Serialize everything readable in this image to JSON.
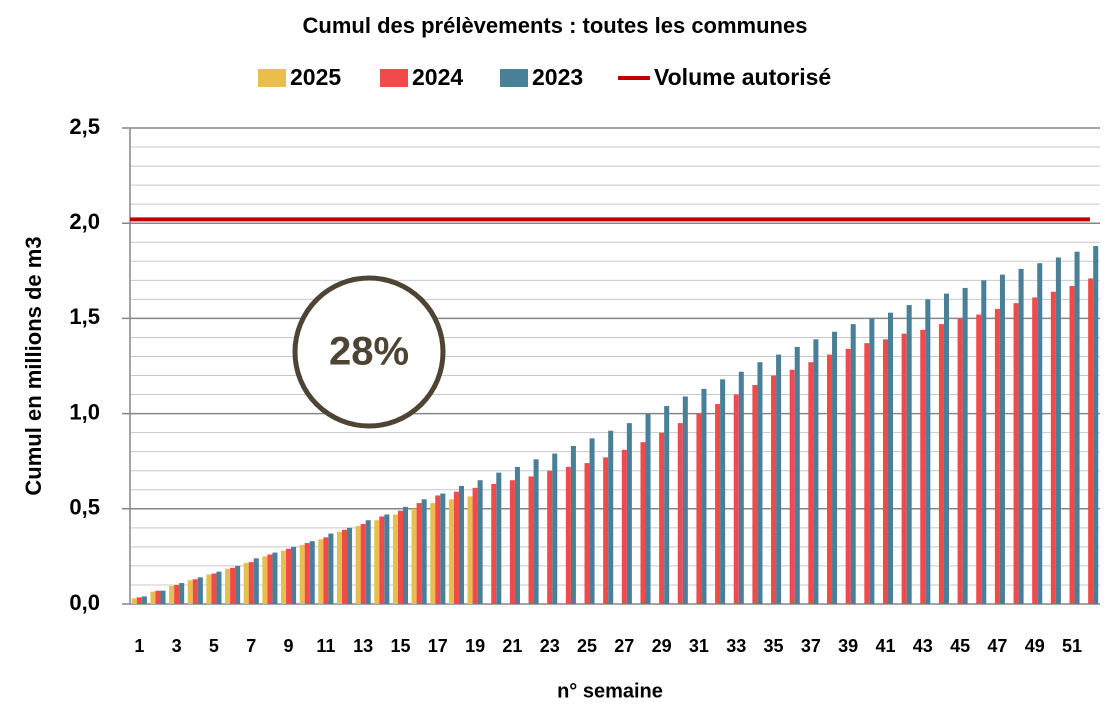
{
  "chart_data": {
    "type": "bar",
    "title": "Cumul des prélèvements : toutes les communes",
    "x_label": "n° semaine",
    "y_label": "Cumul en millions de m3",
    "annotation": "28%",
    "categories": [
      1,
      null,
      3,
      null,
      5,
      null,
      7,
      null,
      9,
      null,
      11,
      null,
      13,
      null,
      15,
      null,
      17,
      null,
      19,
      null,
      21,
      null,
      23,
      null,
      25,
      null,
      27,
      null,
      29,
      null,
      31,
      null,
      33,
      null,
      35,
      null,
      37,
      null,
      39,
      null,
      41,
      null,
      43,
      null,
      45,
      null,
      47,
      null,
      49,
      null,
      51,
      null
    ],
    "series": [
      {
        "name": "2025",
        "color": "#e8bf4a",
        "values": [
          0.03,
          0.065,
          0.095,
          0.125,
          0.155,
          0.185,
          0.215,
          0.25,
          0.28,
          0.31,
          0.34,
          0.38,
          0.41,
          0.44,
          0.47,
          0.5,
          0.53,
          0.55,
          0.565,
          null,
          null,
          null,
          null,
          null,
          null,
          null,
          null,
          null,
          null,
          null,
          null,
          null,
          null,
          null,
          null,
          null,
          null,
          null,
          null,
          null,
          null,
          null,
          null,
          null,
          null,
          null,
          null,
          null,
          null,
          null,
          null,
          null
        ]
      },
      {
        "name": "2024",
        "color": "#f04a4a",
        "values": [
          0.035,
          0.07,
          0.1,
          0.13,
          0.16,
          0.19,
          0.22,
          0.26,
          0.29,
          0.32,
          0.35,
          0.39,
          0.42,
          0.46,
          0.49,
          0.53,
          0.57,
          0.59,
          0.61,
          0.63,
          0.65,
          0.67,
          0.7,
          0.72,
          0.74,
          0.77,
          0.81,
          0.85,
          0.9,
          0.95,
          1.0,
          1.05,
          1.1,
          1.15,
          1.2,
          1.23,
          1.27,
          1.31,
          1.34,
          1.37,
          1.39,
          1.42,
          1.44,
          1.47,
          1.5,
          1.52,
          1.55,
          1.58,
          1.61,
          1.64,
          1.67,
          1.71
        ]
      },
      {
        "name": "2023",
        "color": "#4a8097",
        "values": [
          0.04,
          0.07,
          0.11,
          0.14,
          0.17,
          0.2,
          0.24,
          0.27,
          0.3,
          0.33,
          0.37,
          0.4,
          0.44,
          0.47,
          0.51,
          0.55,
          0.58,
          0.62,
          0.65,
          0.69,
          0.72,
          0.76,
          0.79,
          0.83,
          0.87,
          0.91,
          0.95,
          1.0,
          1.04,
          1.09,
          1.13,
          1.18,
          1.22,
          1.27,
          1.31,
          1.35,
          1.39,
          1.43,
          1.47,
          1.5,
          1.53,
          1.57,
          1.6,
          1.63,
          1.66,
          1.7,
          1.73,
          1.76,
          1.79,
          1.82,
          1.85,
          1.88
        ]
      }
    ],
    "reference_line": {
      "name": "Volume autorisé",
      "value": 2.02,
      "color": "#c00000"
    },
    "ylim": [
      0,
      2.5
    ],
    "yticks": [
      {
        "value": 0,
        "label": "0,0"
      },
      {
        "value": 0.5,
        "label": "0,5"
      },
      {
        "value": 1,
        "label": "1,0"
      },
      {
        "value": 1.5,
        "label": "1,5"
      },
      {
        "value": 2,
        "label": "2,0"
      },
      {
        "value": 2.5,
        "label": "2,5"
      }
    ],
    "minor_yticks": [
      0.1,
      0.2,
      0.3,
      0.4,
      0.6,
      0.7,
      0.8,
      0.9,
      1.1,
      1.2,
      1.3,
      1.4,
      1.6,
      1.7,
      1.8,
      1.9,
      2.1,
      2.2,
      2.3,
      2.4
    ],
    "grid": true
  }
}
